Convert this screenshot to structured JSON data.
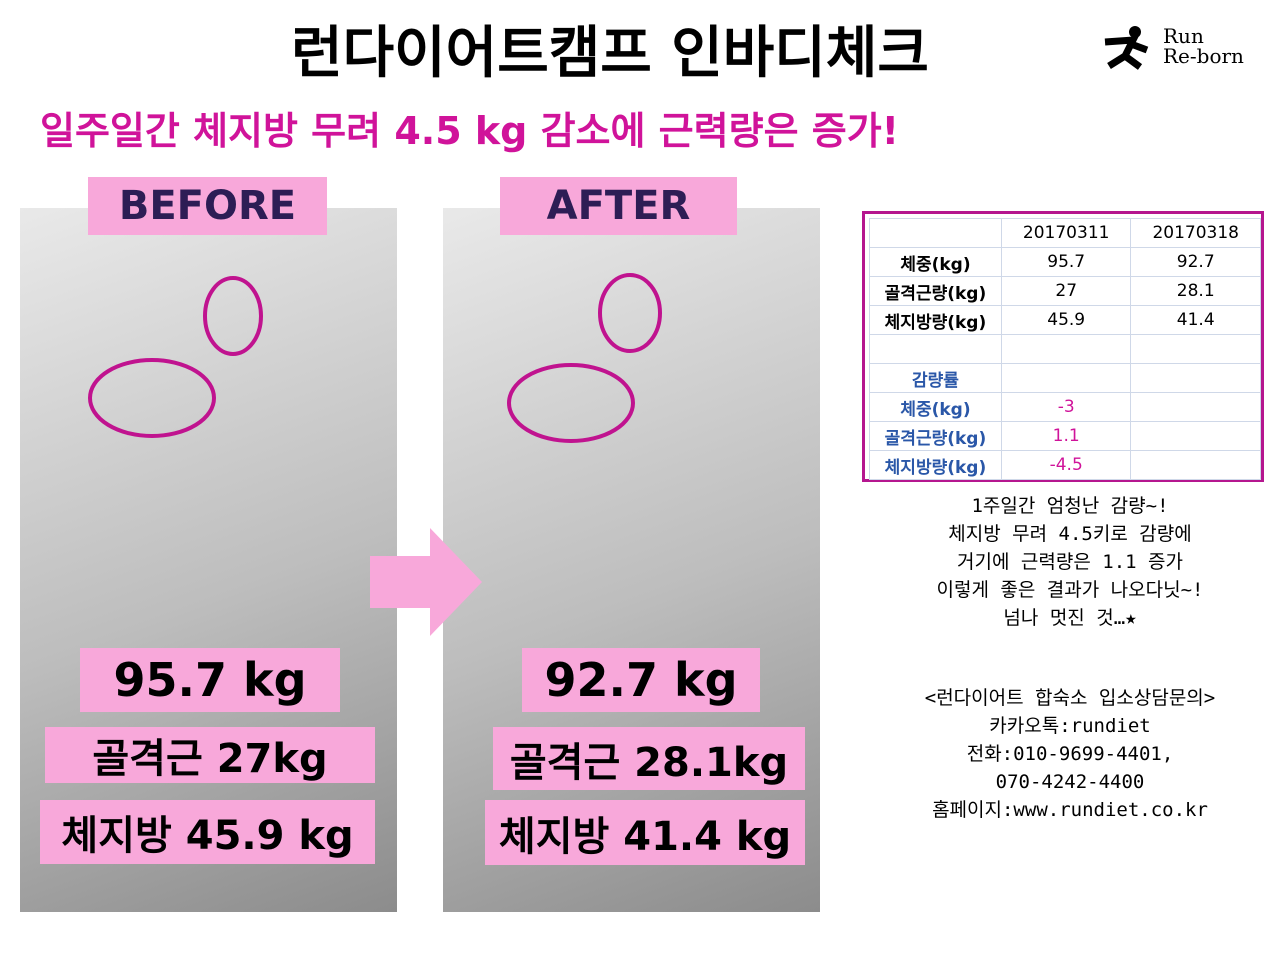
{
  "header": {
    "title": "런다이어트캠프 인바디체크",
    "logo": [
      "Run",
      "Re-born"
    ],
    "subtitle": "일주일간 체지방 무려 4.5 kg 감소에 근력량은 증가!"
  },
  "before": {
    "label": "BEFORE",
    "weight": "95.7 kg",
    "muscle": "골격근 27kg",
    "fat": "체지방 45.9 kg"
  },
  "after": {
    "label": "AFTER",
    "weight": "92.7 kg",
    "muscle": "골격근 28.1kg",
    "fat": "체지방 41.4 kg"
  },
  "table": {
    "columns": [
      "20170311",
      "20170318"
    ],
    "rows": [
      [
        "체중(kg)",
        "95.7",
        "92.7"
      ],
      [
        "골격근량(kg)",
        "27",
        "28.1"
      ],
      [
        "체지방량(kg)",
        "45.9",
        "41.4"
      ]
    ],
    "change_title": "감량률",
    "change_rows": [
      [
        "체중(kg)",
        "-3"
      ],
      [
        "골격근량(kg)",
        "1.1"
      ],
      [
        "체지방량(kg)",
        "-4.5"
      ]
    ]
  },
  "notes": [
    "1주일간 엄청난 감량~!",
    "체지방 무려 4.5키로 감량에",
    "거기에 근력량은 1.1 증가",
    "이렇게 좋은 결과가 나오다닛~!",
    "넘나 멋진 것…★"
  ],
  "contact": [
    "<런다이어트 합숙소 입소상담문의>",
    "카카오톡:rundiet",
    "전화:010-9699-4401,",
    "070-4242-4400",
    "홈페이지:www.rundiet.co.kr"
  ]
}
